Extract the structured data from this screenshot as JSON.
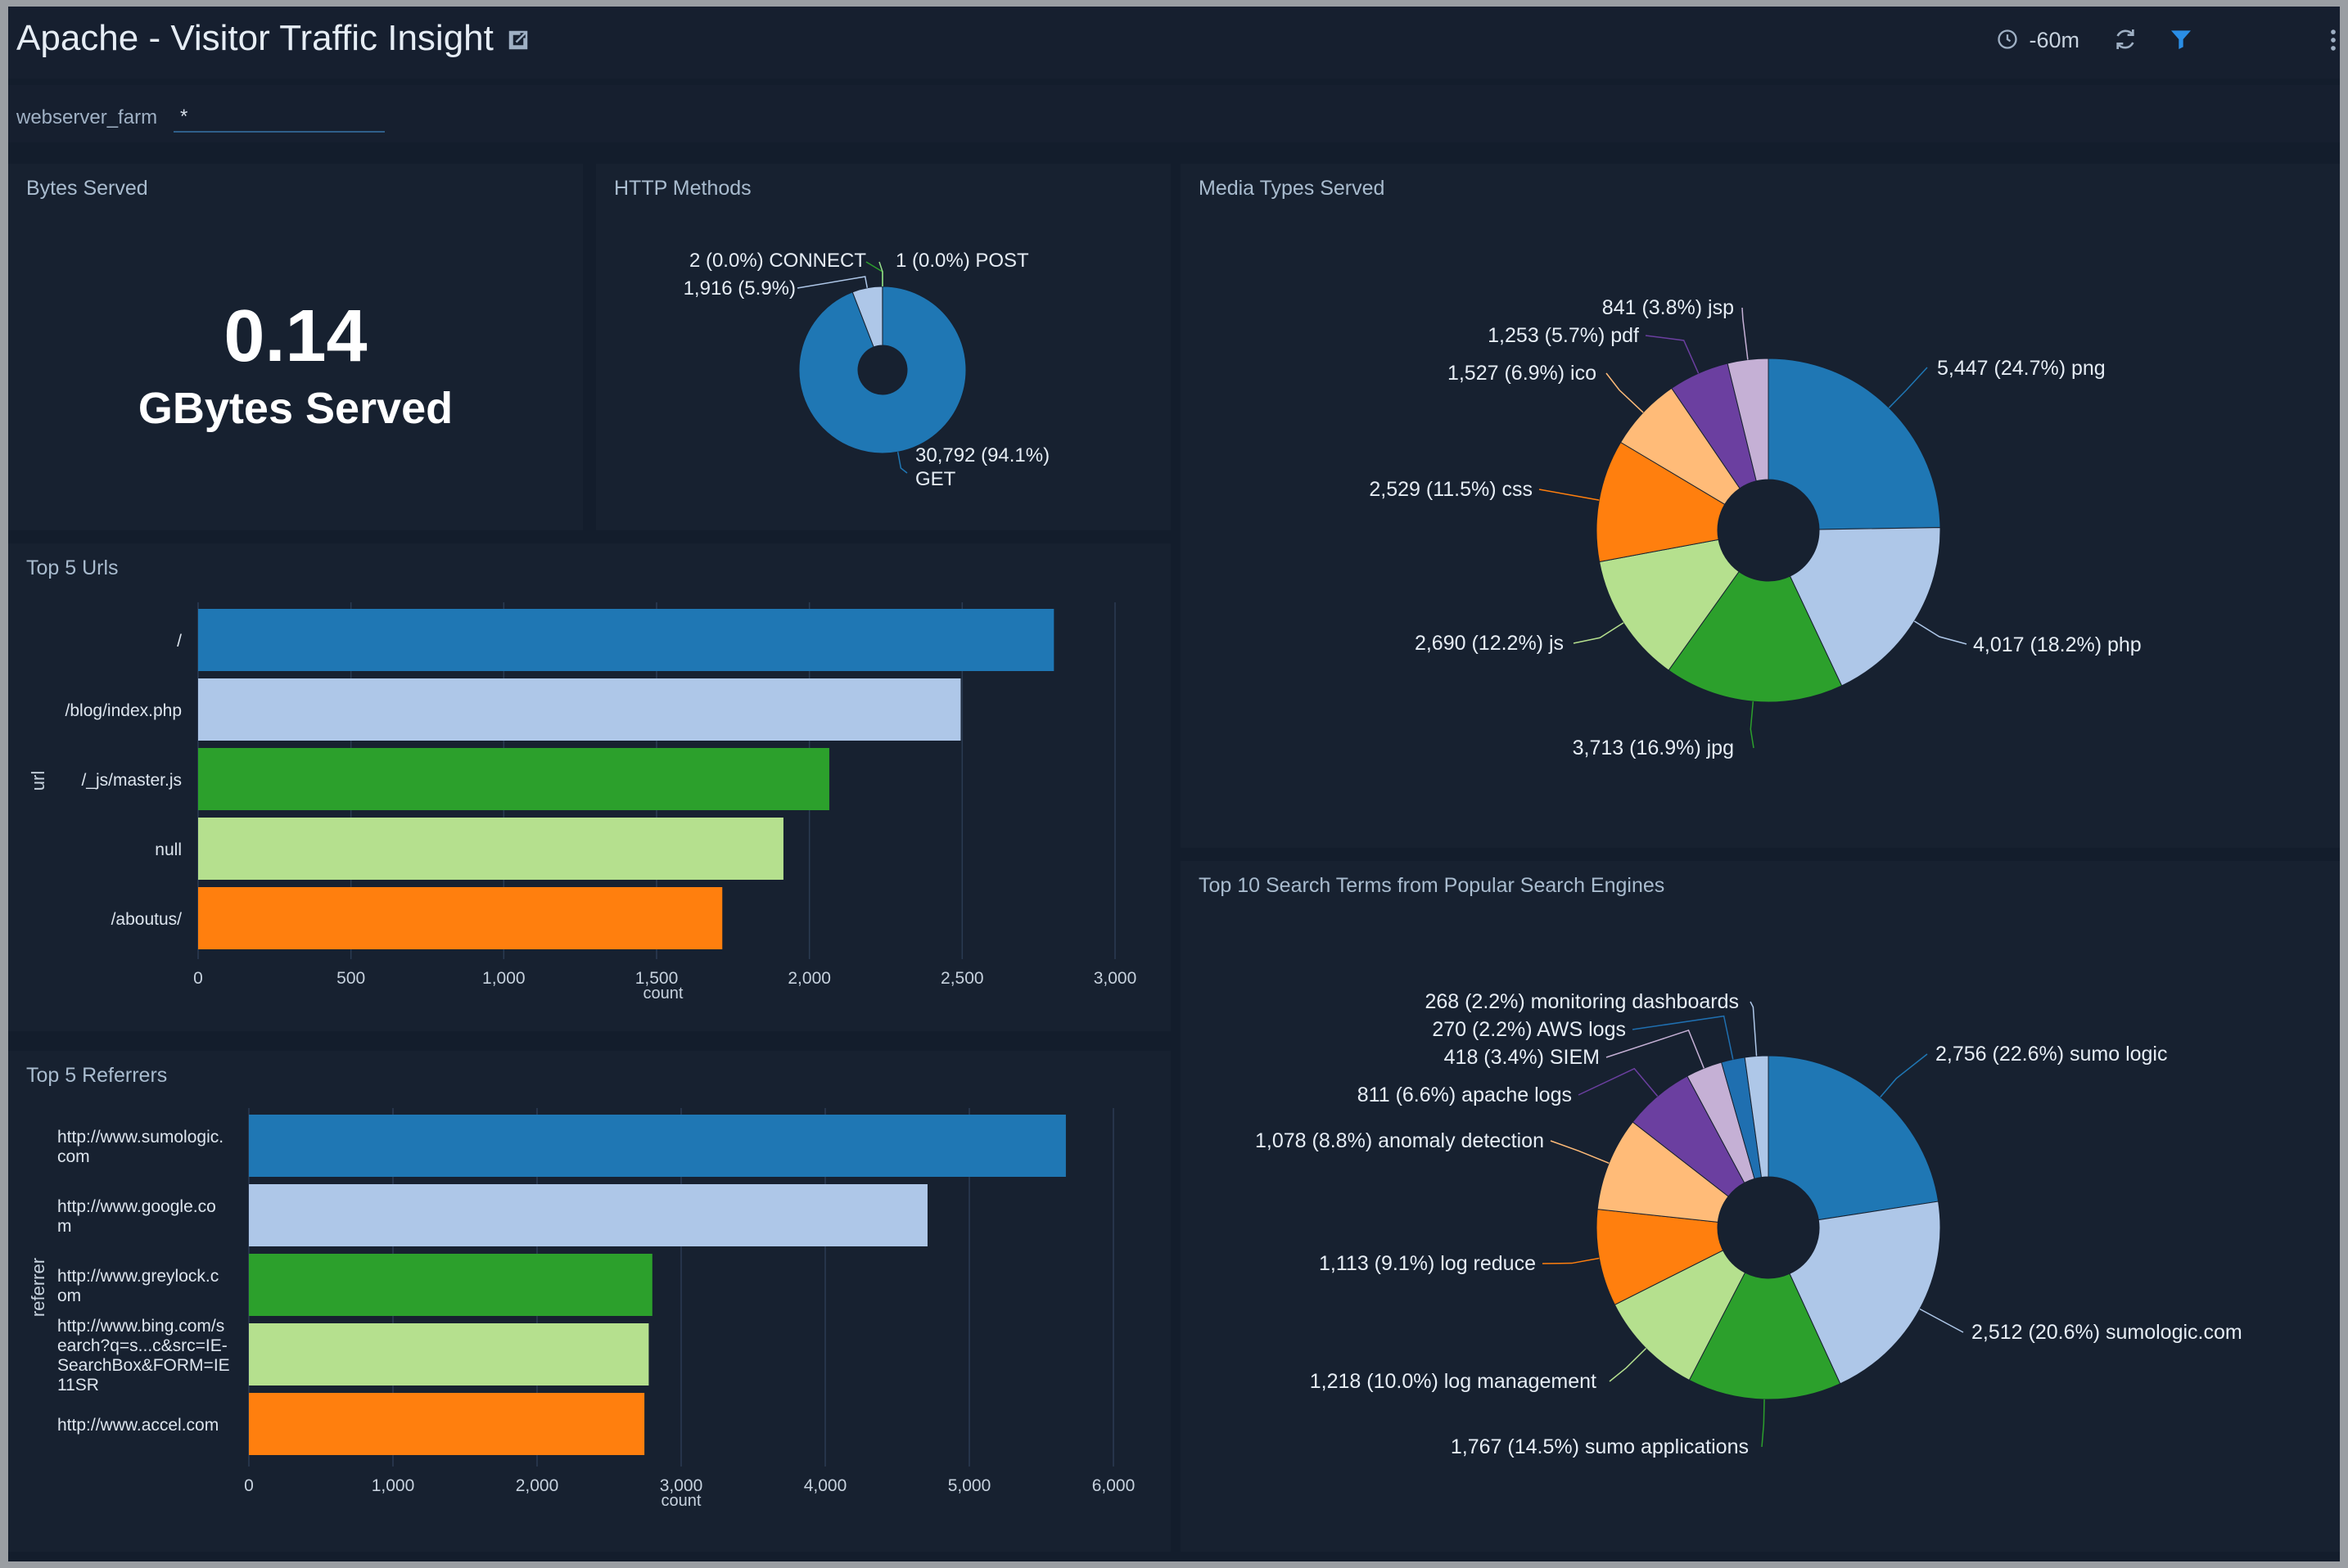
{
  "header": {
    "title": "Apache - Visitor Traffic Insight",
    "time_range": "-60m"
  },
  "filter": {
    "key": "webserver_farm",
    "value": "*"
  },
  "bytes_served": {
    "title": "Bytes Served",
    "value": "0.14",
    "unit": "GBytes Served"
  },
  "http_methods": {
    "title": "HTTP Methods",
    "chart_data": {
      "type": "pie",
      "slices": [
        {
          "label": "GET",
          "value": 30792,
          "pct": "94.1%",
          "display": "30,792 (94.1%)",
          "color": "#1f77b4"
        },
        {
          "label": "",
          "value": 1916,
          "pct": "5.9%",
          "display": "1,916 (5.9%)",
          "color": "#aec7e8"
        },
        {
          "label": "CONNECT",
          "value": 2,
          "pct": "0.0%",
          "display": "2 (0.0%) CONNECT",
          "color": "#2ca02c"
        },
        {
          "label": "POST",
          "value": 1,
          "pct": "0.0%",
          "display": "1 (0.0%) POST",
          "color": "#98df8a"
        }
      ]
    }
  },
  "media_types": {
    "title": "Media Types Served",
    "chart_data": {
      "type": "pie",
      "slices": [
        {
          "label": "png",
          "value": 5447,
          "display": "5,447 (24.7%) png",
          "color": "#1f77b4"
        },
        {
          "label": "php",
          "value": 4017,
          "display": "4,017 (18.2%) php",
          "color": "#aec7e8"
        },
        {
          "label": "jpg",
          "value": 3713,
          "display": "3,713 (16.9%) jpg",
          "color": "#2ca02c"
        },
        {
          "label": "js",
          "value": 2690,
          "display": "2,690 (12.2%) js",
          "color": "#b5e08e"
        },
        {
          "label": "css",
          "value": 2529,
          "display": "2,529 (11.5%) css",
          "color": "#ff7f0e"
        },
        {
          "label": "ico",
          "value": 1527,
          "display": "1,527 (6.9%) ico",
          "color": "#ffbb78"
        },
        {
          "label": "pdf",
          "value": 1253,
          "display": "1,253 (5.7%) pdf",
          "color": "#6b3fa0"
        },
        {
          "label": "jsp",
          "value": 841,
          "display": "841 (3.8%) jsp",
          "color": "#c5b0d5"
        }
      ]
    }
  },
  "top_urls": {
    "title": "Top 5 Urls",
    "chart_data": {
      "type": "bar",
      "orientation": "horizontal",
      "categories": [
        "/",
        "/blog/index.php",
        "/_js/master.js",
        "null",
        "/aboutus/"
      ],
      "values": [
        2800,
        2495,
        2065,
        1915,
        1715
      ],
      "colors": [
        "#1f77b4",
        "#aec7e8",
        "#2ca02c",
        "#b5e08e",
        "#ff7f0e"
      ],
      "xlabel": "count",
      "ylabel": "url",
      "xlim": [
        0,
        3000
      ],
      "ticks": [
        0,
        500,
        1000,
        1500,
        2000,
        2500,
        3000
      ],
      "tick_labels": [
        "0",
        "500",
        "1,000",
        "1,500",
        "2,000",
        "2,500",
        "3,000"
      ]
    }
  },
  "top_referrers": {
    "title": "Top 5 Referrers",
    "chart_data": {
      "type": "bar",
      "orientation": "horizontal",
      "categories": [
        [
          "http://www.sumologic.",
          "com"
        ],
        [
          "http://www.google.co",
          "m"
        ],
        [
          "http://www.greylock.c",
          "om"
        ],
        [
          "http://www.bing.com/s",
          "earch?q=s...c&src=IE-",
          "SearchBox&FORM=IE",
          "11SR"
        ],
        [
          "http://www.accel.com"
        ]
      ],
      "values": [
        5670,
        4710,
        2800,
        2775,
        2745
      ],
      "colors": [
        "#1f77b4",
        "#aec7e8",
        "#2ca02c",
        "#b5e08e",
        "#ff7f0e"
      ],
      "xlabel": "count",
      "ylabel": "referrer",
      "xlim": [
        0,
        6000
      ],
      "ticks": [
        0,
        1000,
        2000,
        3000,
        4000,
        5000,
        6000
      ],
      "tick_labels": [
        "0",
        "1,000",
        "2,000",
        "3,000",
        "4,000",
        "5,000",
        "6,000"
      ]
    }
  },
  "search_terms": {
    "title": "Top 10 Search Terms from Popular Search Engines",
    "chart_data": {
      "type": "pie",
      "slices": [
        {
          "label": "sumo logic",
          "value": 2756,
          "display": "2,756 (22.6%) sumo logic",
          "color": "#1f77b4"
        },
        {
          "label": "sumologic.com",
          "value": 2512,
          "display": "2,512 (20.6%) sumologic.com",
          "color": "#aec7e8"
        },
        {
          "label": "sumo applications",
          "value": 1767,
          "display": "1,767 (14.5%) sumo applications",
          "color": "#2ca02c"
        },
        {
          "label": "log management",
          "value": 1218,
          "display": "1,218 (10.0%) log management",
          "color": "#b5e08e"
        },
        {
          "label": "log reduce",
          "value": 1113,
          "display": "1,113 (9.1%) log reduce",
          "color": "#ff7f0e"
        },
        {
          "label": "anomaly detection",
          "value": 1078,
          "display": "1,078 (8.8%) anomaly detection",
          "color": "#ffbb78"
        },
        {
          "label": "apache logs",
          "value": 811,
          "display": "811 (6.6%) apache logs",
          "color": "#6b3fa0"
        },
        {
          "label": "SIEM",
          "value": 418,
          "display": "418 (3.4%) SIEM",
          "color": "#c5b0d5"
        },
        {
          "label": "AWS logs",
          "value": 270,
          "display": "270 (2.2%) AWS logs",
          "color": "#1f6fb0"
        },
        {
          "label": "monitoring dashboards",
          "value": 268,
          "display": "268 (2.2%) monitoring dashboards",
          "color": "#aec7e8"
        }
      ]
    }
  }
}
